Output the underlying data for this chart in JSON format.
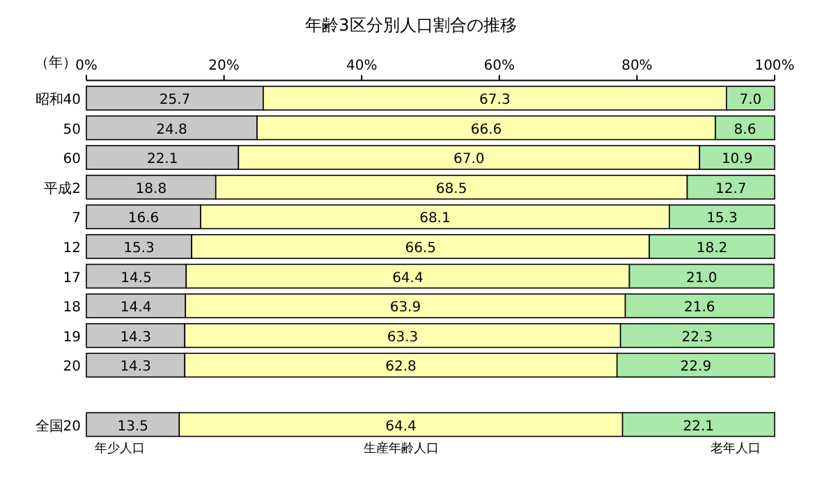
{
  "chart_data": {
    "type": "bar",
    "orientation": "horizontal",
    "stacked": true,
    "title": "年齢3区分別人口割合の推移",
    "ylabel": "（年）",
    "categories": [
      "昭和40",
      "50",
      "60",
      "平成2",
      "7",
      "12",
      "17",
      "18",
      "19",
      "20",
      null,
      "全国20"
    ],
    "series": [
      {
        "name": "年少人口",
        "color": "#c8c8c8",
        "values": [
          25.7,
          24.8,
          22.1,
          18.8,
          16.6,
          15.3,
          14.5,
          14.4,
          14.3,
          14.3,
          null,
          13.5
        ],
        "value_labels": [
          "25.7",
          "24.8",
          "22.1",
          "18.8",
          "16.6",
          "15.3",
          "14.5",
          "14.4",
          "14.3",
          "14.3",
          null,
          "13.5"
        ]
      },
      {
        "name": "生産年齢人口",
        "color": "#ffffb0",
        "values": [
          67.3,
          66.6,
          67.0,
          68.5,
          68.1,
          66.5,
          64.4,
          63.9,
          63.3,
          62.8,
          null,
          64.4
        ],
        "value_labels": [
          "67.3",
          "66.6",
          "67.0",
          "68.5",
          "68.1",
          "66.5",
          "64.4",
          "63.9",
          "63.3",
          "62.8",
          null,
          "64.4"
        ]
      },
      {
        "name": "老年人口",
        "color": "#a8e8a8",
        "values": [
          7.0,
          8.6,
          10.9,
          12.7,
          15.3,
          18.2,
          21.0,
          21.6,
          22.3,
          22.9,
          null,
          22.1
        ],
        "value_labels": [
          "7.0",
          "8.6",
          "10.9",
          "12.7",
          "15.3",
          "18.2",
          "21.0",
          "21.6",
          "22.3",
          "22.9",
          null,
          "22.1"
        ]
      }
    ],
    "xlim": [
      0,
      100
    ],
    "xticks": [
      {
        "value": 0,
        "label": "0%"
      },
      {
        "value": 20,
        "label": "20%"
      },
      {
        "value": 40,
        "label": "40%"
      },
      {
        "value": 60,
        "label": "60%"
      },
      {
        "value": 80,
        "label": "80%"
      },
      {
        "value": 100,
        "label": "100%"
      }
    ],
    "grid": false
  }
}
